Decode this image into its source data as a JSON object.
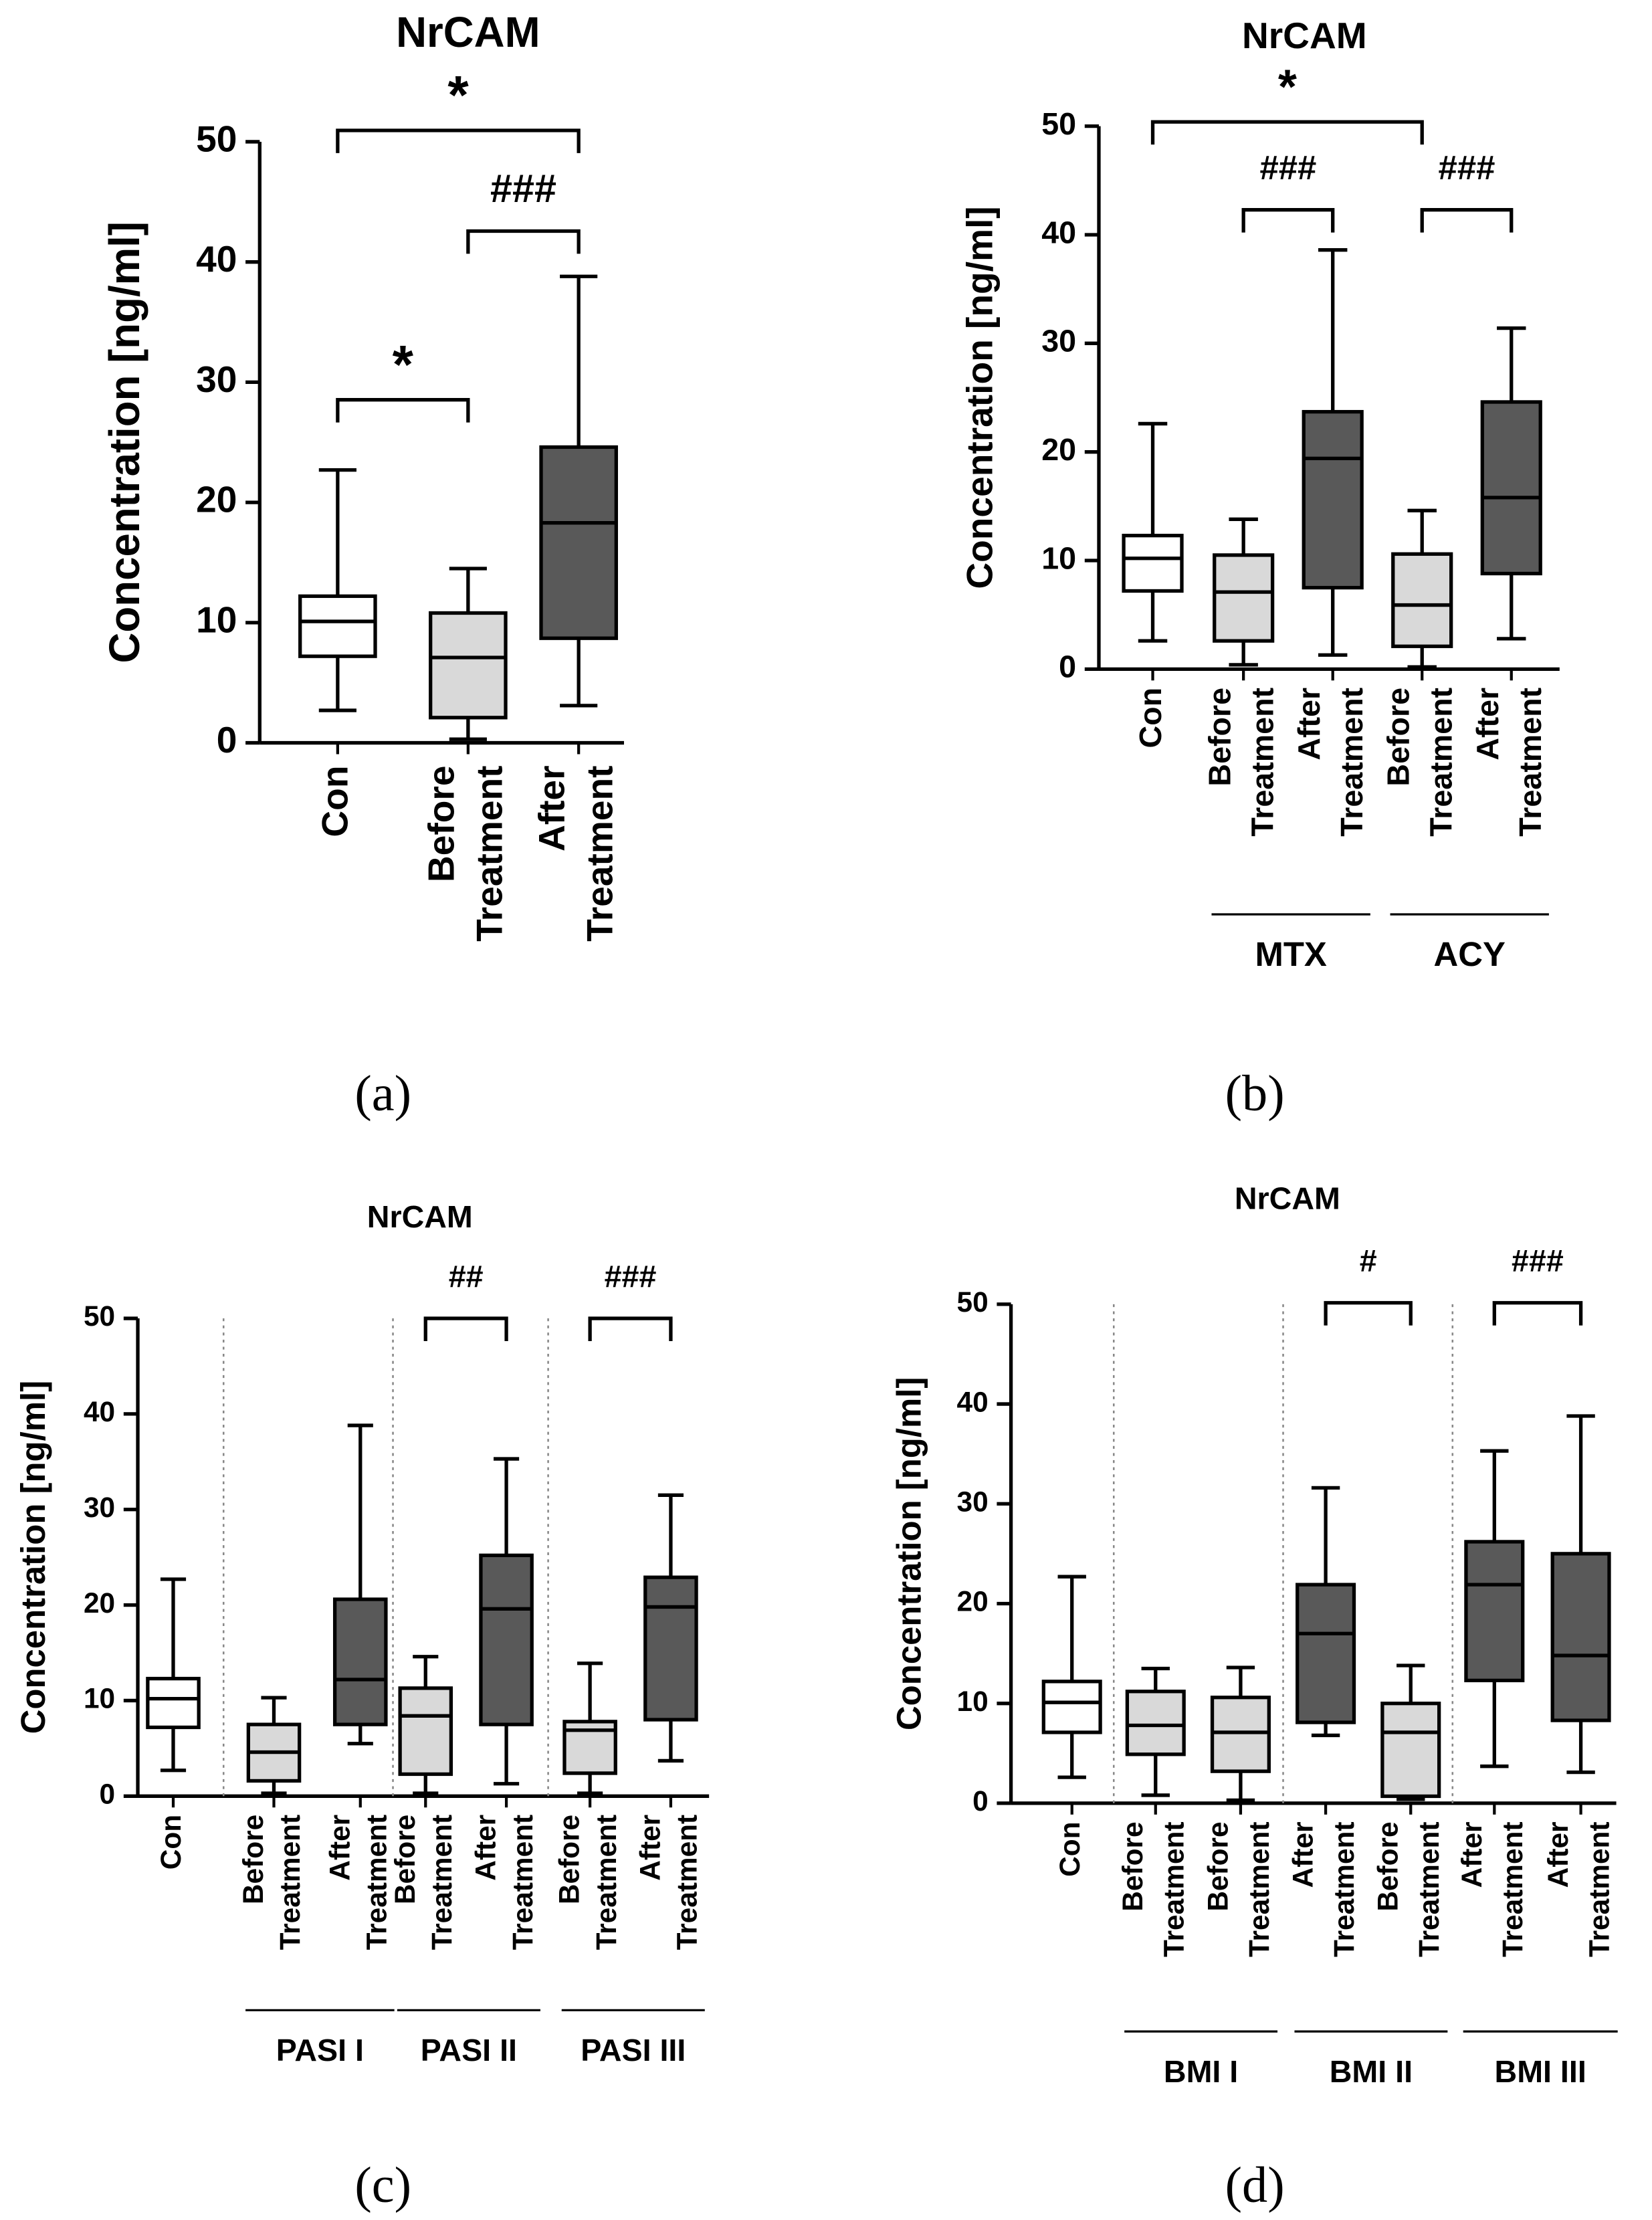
{
  "chart_data": [
    {
      "type": "box",
      "title": "NrCAM",
      "ylabel": "Concentration [ng/ml]",
      "panel_label": "(a)",
      "ylim": [
        0,
        50
      ],
      "yticks": [
        0,
        10,
        20,
        30,
        40,
        50
      ],
      "categories": [
        [
          "Con"
        ],
        [
          "Before",
          "Treatment"
        ],
        [
          "After",
          "Treatment"
        ]
      ],
      "boxes": [
        {
          "whislo": 2.7,
          "q1": 7.2,
          "med": 10.1,
          "q3": 12.2,
          "whishi": 22.7,
          "color": "#ffffff"
        },
        {
          "whislo": 0.3,
          "q1": 2.1,
          "med": 7.1,
          "q3": 10.8,
          "whishi": 14.5,
          "color": "#d9d9d9"
        },
        {
          "whislo": 3.1,
          "q1": 8.7,
          "med": 18.3,
          "q3": 24.6,
          "whishi": 38.8,
          "color": "#595959"
        }
      ],
      "groups": [],
      "annotations": [
        {
          "text": "*",
          "between": [
            0,
            2
          ]
        },
        {
          "text": "###",
          "between": [
            1,
            2
          ]
        },
        {
          "text": "*",
          "between": [
            0,
            1
          ]
        }
      ]
    },
    {
      "type": "box",
      "title": "NrCAM",
      "ylabel": "Concentration [ng/ml]",
      "panel_label": "(b)",
      "ylim": [
        0,
        50
      ],
      "yticks": [
        0,
        10,
        20,
        30,
        40,
        50
      ],
      "categories": [
        [
          "Con"
        ],
        [
          "Before",
          "Treatment"
        ],
        [
          "After",
          "Treatment"
        ],
        [
          "Before",
          "Treatment"
        ],
        [
          "After",
          "Treatment"
        ]
      ],
      "boxes": [
        {
          "whislo": 2.6,
          "q1": 7.2,
          "med": 10.2,
          "q3": 12.3,
          "whishi": 22.6,
          "color": "#ffffff"
        },
        {
          "whislo": 0.4,
          "q1": 2.6,
          "med": 7.1,
          "q3": 10.5,
          "whishi": 13.8,
          "color": "#d9d9d9"
        },
        {
          "whislo": 1.3,
          "q1": 7.5,
          "med": 19.4,
          "q3": 23.7,
          "whishi": 38.6,
          "color": "#595959"
        },
        {
          "whislo": 0.2,
          "q1": 2.1,
          "med": 5.9,
          "q3": 10.6,
          "whishi": 14.6,
          "color": "#d9d9d9"
        },
        {
          "whislo": 2.8,
          "q1": 8.8,
          "med": 15.8,
          "q3": 24.6,
          "whishi": 31.4,
          "color": "#595959"
        }
      ],
      "groups": [
        {
          "label": "MTX",
          "span": [
            1,
            2
          ]
        },
        {
          "label": "ACY",
          "span": [
            3,
            4
          ]
        }
      ],
      "annotations": [
        {
          "text": "*",
          "between": [
            0,
            3
          ]
        },
        {
          "text": "###",
          "between": [
            1,
            2
          ]
        },
        {
          "text": "###",
          "between": [
            3,
            4
          ]
        }
      ]
    },
    {
      "type": "box",
      "title": "NrCAM",
      "ylabel": "Concentration [ng/ml]",
      "panel_label": "(c)",
      "ylim": [
        0,
        50
      ],
      "yticks": [
        0,
        10,
        20,
        30,
        40,
        50
      ],
      "categories": [
        [
          "Con"
        ],
        [
          "Before",
          "Treatment"
        ],
        [
          "After",
          "Treatment"
        ],
        [
          "Before",
          "Treatment"
        ],
        [
          "After",
          "Treatment"
        ],
        [
          "Before",
          "Treatment"
        ],
        [
          "After",
          "Treatment"
        ]
      ],
      "boxes": [
        {
          "whislo": 2.7,
          "q1": 7.2,
          "med": 10.2,
          "q3": 12.3,
          "whishi": 22.7,
          "color": "#ffffff"
        },
        {
          "whislo": 0.3,
          "q1": 1.6,
          "med": 4.6,
          "q3": 7.5,
          "whishi": 10.3,
          "color": "#d9d9d9"
        },
        {
          "whislo": 5.5,
          "q1": 7.5,
          "med": 12.2,
          "q3": 20.6,
          "whishi": 38.8,
          "color": "#595959"
        },
        {
          "whislo": 0.3,
          "q1": 2.3,
          "med": 8.4,
          "q3": 11.3,
          "whishi": 14.6,
          "color": "#d9d9d9"
        },
        {
          "whislo": 1.3,
          "q1": 7.5,
          "med": 19.6,
          "q3": 25.2,
          "whishi": 35.3,
          "color": "#595959"
        },
        {
          "whislo": 0.3,
          "q1": 2.4,
          "med": 6.9,
          "q3": 7.8,
          "whishi": 13.9,
          "color": "#d9d9d9"
        },
        {
          "whislo": 3.7,
          "q1": 8.0,
          "med": 19.8,
          "q3": 22.9,
          "whishi": 31.5,
          "color": "#595959"
        }
      ],
      "groups": [
        {
          "label": "PASI I",
          "span": [
            1,
            2
          ]
        },
        {
          "label": "PASI II",
          "span": [
            3,
            4
          ]
        },
        {
          "label": "PASI III",
          "span": [
            5,
            6
          ]
        }
      ],
      "annotations": [
        {
          "text": "##",
          "between": [
            3,
            4
          ]
        },
        {
          "text": "###",
          "between": [
            5,
            6
          ]
        }
      ]
    },
    {
      "type": "box",
      "title": "NrCAM",
      "ylabel": "Concentration [ng/ml]",
      "panel_label": "(d)",
      "ylim": [
        0,
        50
      ],
      "yticks": [
        0,
        10,
        20,
        30,
        40,
        50
      ],
      "categories": [
        [
          "Con"
        ],
        [
          "Before",
          "Treatment"
        ],
        [
          "Before",
          "Treatment"
        ],
        [
          "After",
          "Treatment"
        ],
        [
          "Before",
          "Treatment"
        ],
        [
          "After",
          "Treatment"
        ],
        [
          "After",
          "Treatment"
        ]
      ],
      "boxes": [
        {
          "whislo": 2.6,
          "q1": 7.1,
          "med": 10.1,
          "q3": 12.2,
          "whishi": 22.7,
          "color": "#ffffff"
        },
        {
          "whislo": 0.8,
          "q1": 4.9,
          "med": 7.8,
          "q3": 11.2,
          "whishi": 13.5,
          "color": "#d9d9d9"
        },
        {
          "whislo": 0.3,
          "q1": 3.2,
          "med": 7.1,
          "q3": 10.6,
          "whishi": 13.6,
          "color": "#d9d9d9"
        },
        {
          "whislo": 6.8,
          "q1": 8.1,
          "med": 17.0,
          "q3": 21.9,
          "whishi": 31.6,
          "color": "#595959"
        },
        {
          "whislo": 0.4,
          "q1": 0.7,
          "med": 7.1,
          "q3": 10.0,
          "whishi": 13.8,
          "color": "#d9d9d9"
        },
        {
          "whislo": 3.7,
          "q1": 12.3,
          "med": 21.9,
          "q3": 26.2,
          "whishi": 35.3,
          "color": "#595959"
        },
        {
          "whislo": 3.1,
          "q1": 8.3,
          "med": 14.8,
          "q3": 25.0,
          "whishi": 38.8,
          "color": "#595959"
        }
      ],
      "groups": [
        {
          "label": "BMI I",
          "span": [
            1,
            2
          ]
        },
        {
          "label": "BMI II",
          "span": [
            3,
            4
          ]
        },
        {
          "label": "BMI III",
          "span": [
            5,
            6
          ]
        }
      ],
      "annotations": [
        {
          "text": "#",
          "between": [
            3,
            4
          ]
        },
        {
          "text": "###",
          "between": [
            5,
            6
          ]
        }
      ]
    }
  ]
}
